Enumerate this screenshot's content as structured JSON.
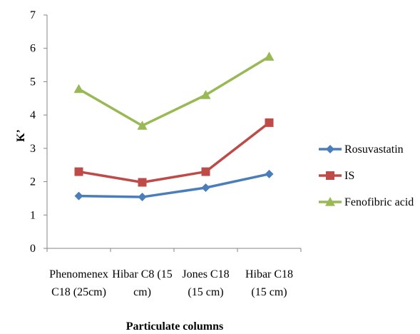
{
  "chart_data": {
    "type": "line",
    "categories": [
      [
        "Phenomenex",
        "C18 (25cm)"
      ],
      [
        "Hibar C8 (15",
        "cm)"
      ],
      [
        "Jones C18",
        "(15 cm)"
      ],
      [
        "Hibar C18",
        "(15 cm)"
      ]
    ],
    "series": [
      {
        "name": "Rosuvastatin",
        "values": [
          1.57,
          1.54,
          1.82,
          2.23
        ],
        "color": "#4a7ebb",
        "marker": "diamond"
      },
      {
        "name": "IS",
        "values": [
          2.3,
          1.98,
          2.3,
          3.77
        ],
        "color": "#be4b48",
        "marker": "square"
      },
      {
        "name": "Fenofibric acid",
        "values": [
          4.78,
          3.68,
          4.6,
          5.75
        ],
        "color": "#98b954",
        "marker": "triangle"
      }
    ],
    "xlabel": "Particulate columns",
    "ylabel": "K’",
    "ylim": [
      0,
      7
    ],
    "yticks": [
      "0",
      "1",
      "2",
      "3",
      "4",
      "5",
      "6",
      "7"
    ],
    "grid": false,
    "legend_position": "right"
  }
}
